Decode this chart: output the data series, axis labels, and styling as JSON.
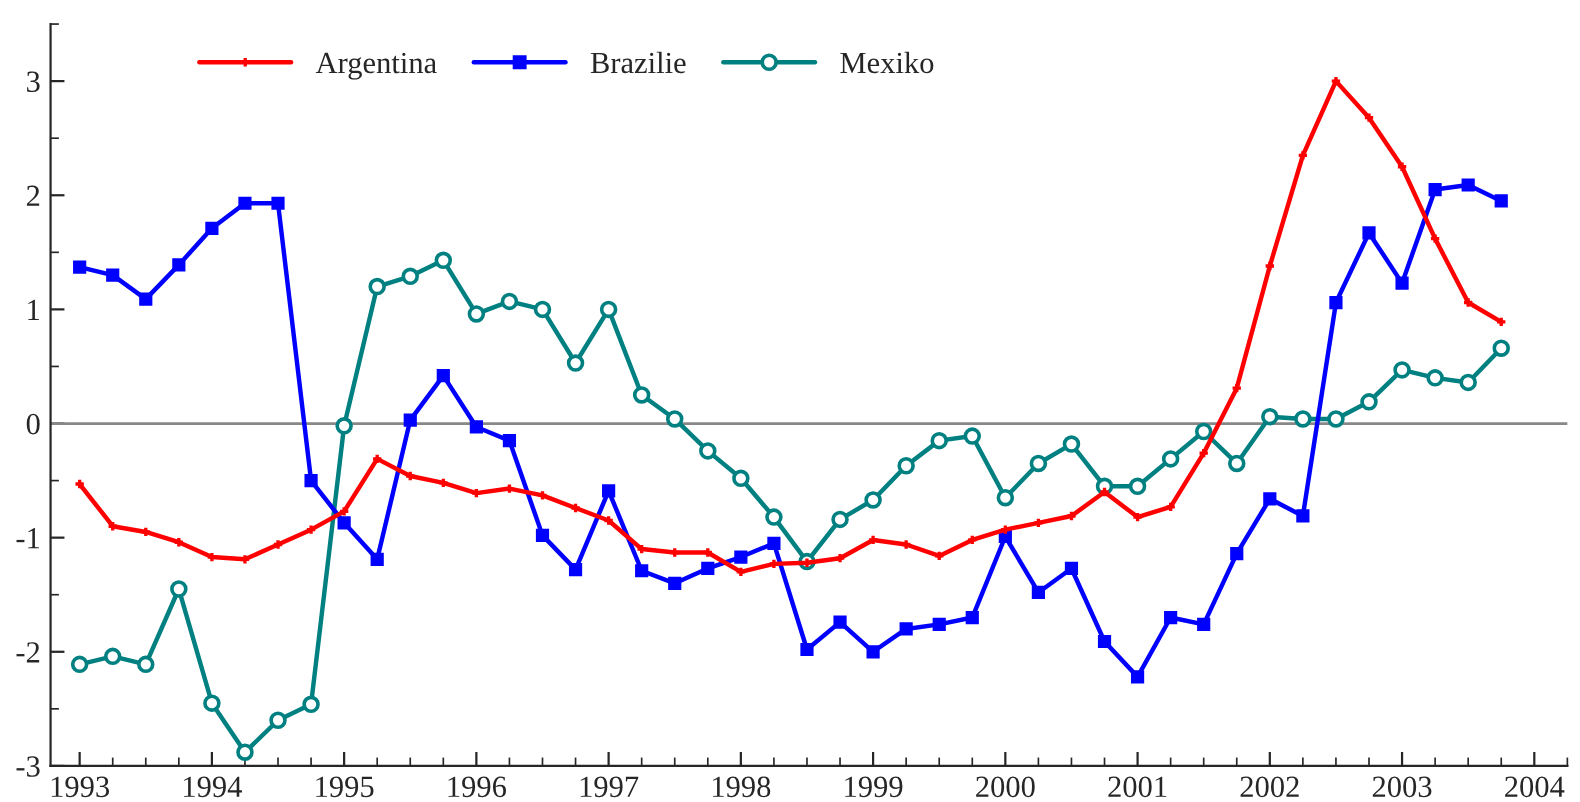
{
  "chart_data": {
    "type": "line",
    "x": [
      1993,
      1993.25,
      1993.5,
      1993.75,
      1994,
      1994.25,
      1994.5,
      1994.75,
      1995,
      1995.25,
      1995.5,
      1995.75,
      1996,
      1996.25,
      1996.5,
      1996.75,
      1997,
      1997.25,
      1997.5,
      1997.75,
      1998,
      1998.25,
      1998.5,
      1998.75,
      1999,
      1999.25,
      1999.5,
      1999.75,
      2000,
      2000.25,
      2000.5,
      2000.75,
      2001,
      2001.25,
      2001.5,
      2001.75,
      2002,
      2002.25,
      2002.5,
      2002.75,
      2003,
      2003.25,
      2003.5,
      2003.75
    ],
    "series": [
      {
        "name": "Argentina",
        "color": "#ff0000",
        "marker": "cross",
        "values": [
          -0.53,
          -0.9,
          -0.95,
          -1.04,
          -1.17,
          -1.19,
          -1.06,
          -0.93,
          -0.77,
          -0.31,
          -0.46,
          -0.52,
          -0.61,
          -0.57,
          -0.63,
          -0.74,
          -0.85,
          -1.1,
          -1.13,
          -1.13,
          -1.3,
          -1.23,
          -1.22,
          -1.18,
          -1.02,
          -1.06,
          -1.16,
          -1.02,
          -0.93,
          -0.87,
          -0.81,
          -0.6,
          -0.82,
          -0.73,
          -0.26,
          0.31,
          1.38,
          2.35,
          3.0,
          2.68,
          2.25,
          1.62,
          1.06,
          0.89
        ]
      },
      {
        "name": "Brazilie",
        "color": "#0000ff",
        "marker": "square",
        "values": [
          1.37,
          1.3,
          1.09,
          1.39,
          1.71,
          1.93,
          1.93,
          -0.5,
          -0.87,
          -1.19,
          0.03,
          0.42,
          -0.03,
          -0.15,
          -0.98,
          -1.28,
          -0.59,
          -1.29,
          -1.4,
          -1.27,
          -1.17,
          -1.05,
          -1.98,
          -1.74,
          -2.0,
          -1.8,
          -1.76,
          -1.7,
          -0.99,
          -1.48,
          -1.27,
          -1.91,
          -2.22,
          -1.7,
          -1.76,
          -1.14,
          -0.66,
          -0.81,
          1.06,
          1.67,
          1.23,
          2.05,
          2.09,
          1.95
        ]
      },
      {
        "name": "Mexiko",
        "color": "#008080",
        "marker": "circle",
        "values": [
          -2.11,
          -2.04,
          -2.11,
          -1.45,
          -2.45,
          -2.88,
          -2.6,
          -2.46,
          -0.02,
          1.2,
          1.29,
          1.43,
          0.96,
          1.07,
          1.0,
          0.53,
          1.0,
          0.25,
          0.04,
          -0.24,
          -0.48,
          -0.82,
          -1.21,
          -0.84,
          -0.67,
          -0.37,
          -0.15,
          -0.11,
          -0.65,
          -0.35,
          -0.18,
          -0.55,
          -0.55,
          -0.31,
          -0.07,
          -0.35,
          0.06,
          0.04,
          0.04,
          0.19,
          0.47,
          0.4,
          0.36,
          0.66
        ]
      }
    ],
    "xlim": [
      1992.78,
      2004.25
    ],
    "xticks": [
      1993,
      1994,
      1995,
      1996,
      1997,
      1998,
      1999,
      2000,
      2001,
      2002,
      2003,
      2004
    ],
    "ylim": [
      -3,
      3.5
    ],
    "yticks": [
      -3,
      -2,
      -1,
      0,
      1,
      2,
      3
    ],
    "ref_lines": [
      {
        "axis": "y",
        "value": 0,
        "color": "#888888"
      }
    ],
    "grid": false,
    "legend": "top left",
    "line_style": "solid"
  }
}
